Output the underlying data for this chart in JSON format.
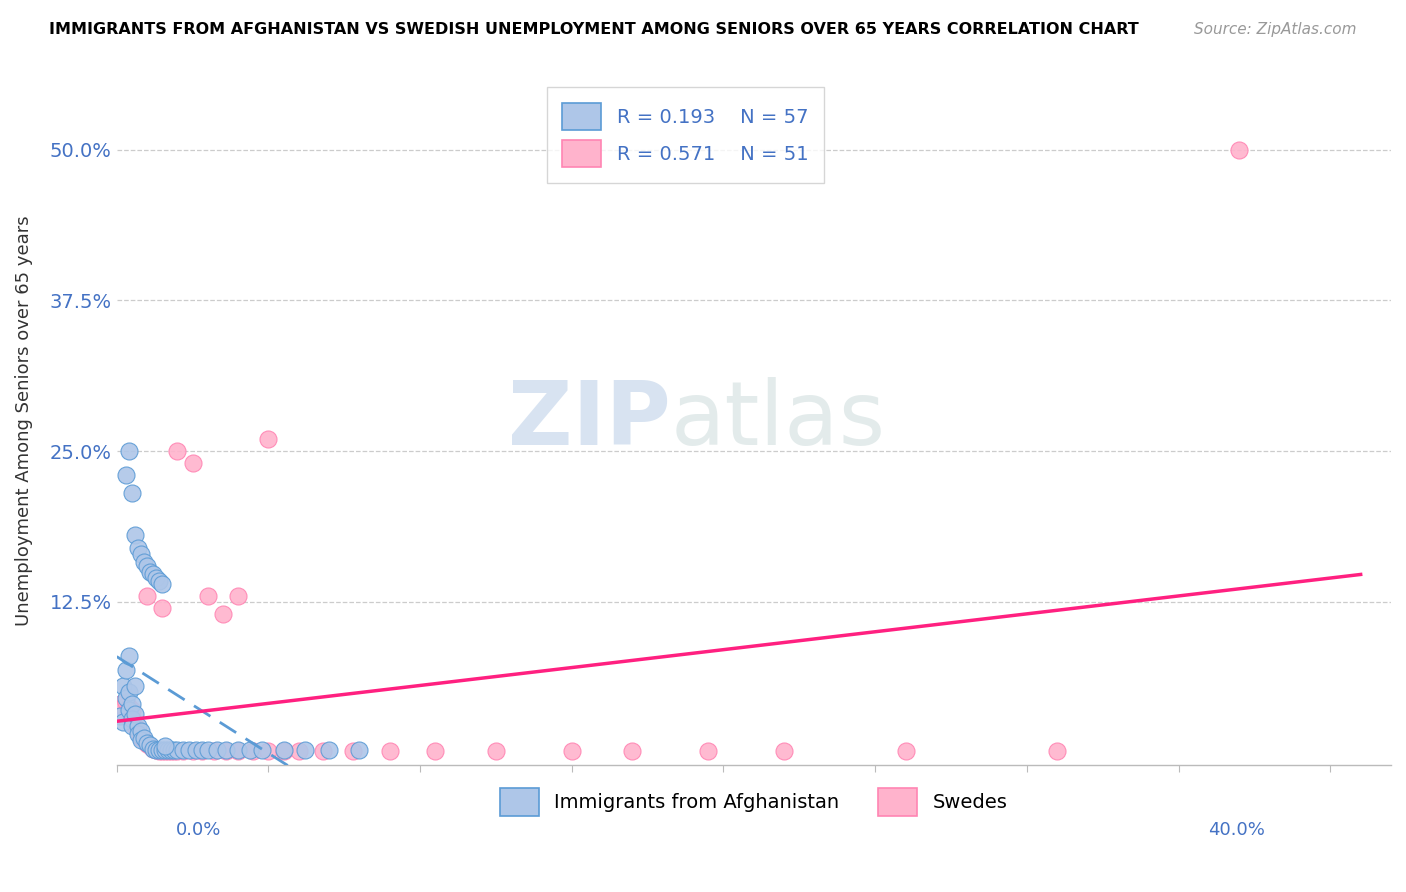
{
  "title": "IMMIGRANTS FROM AFGHANISTAN VS SWEDISH UNEMPLOYMENT AMONG SENIORS OVER 65 YEARS CORRELATION CHART",
  "source": "Source: ZipAtlas.com",
  "ylabel": "Unemployment Among Seniors over 65 years",
  "color_blue_fill": "#AEC6E8",
  "color_blue_edge": "#5B9BD5",
  "color_pink_fill": "#FFB3CC",
  "color_pink_edge": "#FF85B3",
  "color_blue_line": "#5B9BD5",
  "color_pink_line": "#FF2080",
  "color_axis_text": "#4472C4",
  "legend_r1": "R = 0.193",
  "legend_n1": "N = 57",
  "legend_r2": "R = 0.571",
  "legend_n2": "N = 51",
  "xlim": [
    0.0,
    0.42
  ],
  "ylim": [
    -0.01,
    0.56
  ],
  "blue_x": [
    0.001,
    0.002,
    0.002,
    0.003,
    0.003,
    0.004,
    0.004,
    0.004,
    0.005,
    0.005,
    0.005,
    0.006,
    0.006,
    0.007,
    0.007,
    0.008,
    0.008,
    0.009,
    0.01,
    0.011,
    0.012,
    0.013,
    0.014,
    0.015,
    0.016,
    0.017,
    0.018,
    0.019,
    0.02,
    0.022,
    0.024,
    0.026,
    0.028,
    0.03,
    0.033,
    0.036,
    0.04,
    0.044,
    0.048,
    0.055,
    0.062,
    0.07,
    0.08,
    0.003,
    0.004,
    0.005,
    0.006,
    0.007,
    0.008,
    0.009,
    0.01,
    0.011,
    0.012,
    0.013,
    0.014,
    0.015,
    0.016
  ],
  "blue_y": [
    0.03,
    0.055,
    0.025,
    0.068,
    0.045,
    0.08,
    0.05,
    0.035,
    0.04,
    0.028,
    0.022,
    0.032,
    0.055,
    0.022,
    0.015,
    0.018,
    0.01,
    0.012,
    0.008,
    0.006,
    0.003,
    0.002,
    0.002,
    0.002,
    0.002,
    0.002,
    0.002,
    0.002,
    0.002,
    0.002,
    0.002,
    0.002,
    0.002,
    0.002,
    0.002,
    0.002,
    0.002,
    0.002,
    0.002,
    0.002,
    0.002,
    0.002,
    0.002,
    0.23,
    0.25,
    0.215,
    0.18,
    0.17,
    0.165,
    0.158,
    0.155,
    0.15,
    0.148,
    0.145,
    0.142,
    0.14,
    0.005
  ],
  "pink_x": [
    0.001,
    0.002,
    0.003,
    0.004,
    0.005,
    0.005,
    0.006,
    0.007,
    0.008,
    0.009,
    0.01,
    0.011,
    0.012,
    0.013,
    0.014,
    0.015,
    0.016,
    0.017,
    0.018,
    0.019,
    0.02,
    0.022,
    0.025,
    0.028,
    0.032,
    0.036,
    0.04,
    0.045,
    0.05,
    0.055,
    0.06,
    0.068,
    0.078,
    0.09,
    0.105,
    0.125,
    0.15,
    0.17,
    0.195,
    0.22,
    0.26,
    0.31,
    0.37,
    0.01,
    0.015,
    0.02,
    0.025,
    0.03,
    0.035,
    0.04,
    0.05
  ],
  "pink_y": [
    0.04,
    0.038,
    0.042,
    0.038,
    0.035,
    0.028,
    0.022,
    0.018,
    0.012,
    0.01,
    0.007,
    0.005,
    0.003,
    0.002,
    0.001,
    0.001,
    0.001,
    0.001,
    0.001,
    0.001,
    0.001,
    0.001,
    0.001,
    0.001,
    0.001,
    0.001,
    0.001,
    0.001,
    0.001,
    0.001,
    0.001,
    0.001,
    0.001,
    0.001,
    0.001,
    0.001,
    0.001,
    0.001,
    0.001,
    0.001,
    0.001,
    0.001,
    0.5,
    0.13,
    0.12,
    0.25,
    0.24,
    0.13,
    0.115,
    0.13,
    0.26
  ]
}
